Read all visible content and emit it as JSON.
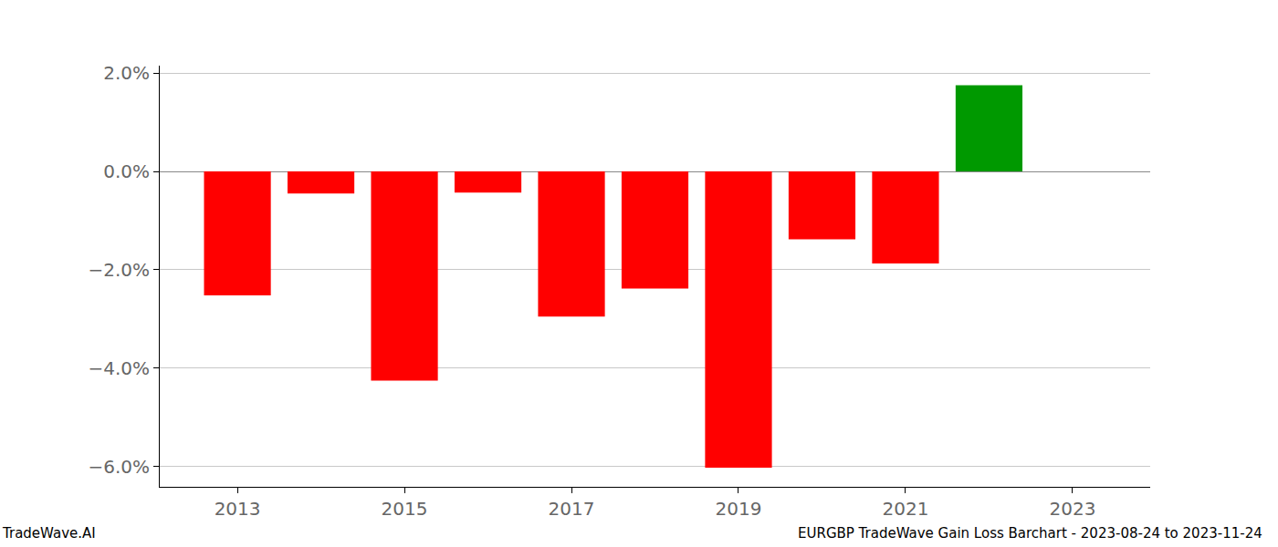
{
  "chart_data": {
    "type": "bar",
    "title": "EURGBP TradeWave Gain Loss Barchart - 2023-08-24 to 2023-11-24",
    "source": "TradeWave.AI",
    "x": [
      2013,
      2014,
      2015,
      2016,
      2017,
      2018,
      2019,
      2020,
      2021,
      2022
    ],
    "values": [
      -2.52,
      -0.45,
      -4.25,
      -0.43,
      -2.95,
      -2.38,
      -6.02,
      -1.38,
      -1.87,
      1.75
    ],
    "colors": [
      "#ff0000",
      "#ff0000",
      "#ff0000",
      "#ff0000",
      "#ff0000",
      "#ff0000",
      "#ff0000",
      "#ff0000",
      "#ff0000",
      "#009900"
    ],
    "xlim": [
      2012.07,
      2023.93
    ],
    "xticks": [
      2013,
      2015,
      2017,
      2019,
      2021,
      2023
    ],
    "ylim": [
      -6.41,
      2.15
    ],
    "yticks": [
      {
        "value": -6,
        "label": "−6.0%"
      },
      {
        "value": -4,
        "label": "−4.0%"
      },
      {
        "value": -2,
        "label": "−2.0%"
      },
      {
        "value": 0,
        "label": "0.0%"
      },
      {
        "value": 2,
        "label": "2.0%"
      }
    ],
    "grid": true
  }
}
